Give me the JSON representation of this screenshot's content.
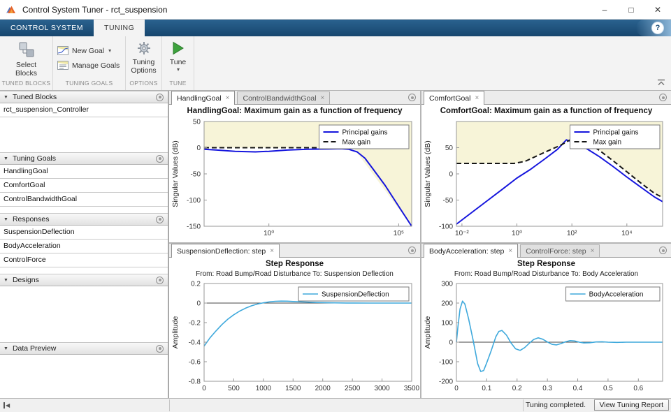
{
  "window": {
    "title": "Control System Tuner - rct_suspension"
  },
  "icons": {
    "help": "?",
    "minimize": "–",
    "maximize": "□",
    "close": "✕",
    "dropdown": "▾",
    "caret": "▼",
    "tab_close": "×",
    "collapse_left": "◀"
  },
  "toolstrip": {
    "tabs": [
      {
        "label": "CONTROL SYSTEM",
        "active": false
      },
      {
        "label": "TUNING",
        "active": true
      }
    ],
    "sections": [
      {
        "label": "TUNED BLOCKS",
        "buttons": [
          {
            "label": "Select Blocks"
          }
        ]
      },
      {
        "label": "TUNING GOALS",
        "buttons": [
          {
            "label": "New Goal",
            "dropdown": true
          },
          {
            "label": "Manage Goals"
          }
        ]
      },
      {
        "label": "OPTIONS",
        "buttons": [
          {
            "label": "Tuning Options"
          }
        ]
      },
      {
        "label": "TUNE",
        "buttons": [
          {
            "label": "Tune",
            "dropdown": true
          }
        ]
      }
    ]
  },
  "sidebar": {
    "panels": [
      {
        "title": "Tuned Blocks",
        "items": [
          "rct_suspension_Controller"
        ]
      },
      {
        "title": "Tuning Goals",
        "items": [
          "HandlingGoal",
          "ComfortGoal",
          "ControlBandwidthGoal"
        ]
      },
      {
        "title": "Responses",
        "items": [
          "SuspensionDeflection",
          "BodyAcceleration",
          "ControlForce"
        ]
      },
      {
        "title": "Designs",
        "items": []
      },
      {
        "title": "Data Preview",
        "items": []
      }
    ]
  },
  "docks": {
    "top_left": {
      "tabs": [
        {
          "label": "HandlingGoal",
          "active": true
        },
        {
          "label": "ControlBandwidthGoal",
          "active": false
        }
      ]
    },
    "top_right": {
      "tabs": [
        {
          "label": "ComfortGoal",
          "active": true
        }
      ]
    },
    "bottom_left": {
      "tabs": [
        {
          "label": "SuspensionDeflection: step",
          "active": true
        }
      ]
    },
    "bottom_right": {
      "tabs": [
        {
          "label": "BodyAcceleration: step",
          "active": true
        },
        {
          "label": "ControlForce: step",
          "active": false
        }
      ]
    }
  },
  "statusbar": {
    "message": "Tuning completed.",
    "button": "View Tuning Report"
  },
  "chart_data": [
    {
      "type": "line",
      "title": "HandlingGoal: Maximum gain as a function of frequency",
      "ylabel": "Singular Values (dB)",
      "xscale": "log",
      "xlim": [
        0.0032,
        316000
      ],
      "ylim": [
        -150,
        50
      ],
      "xticks": [
        {
          "v": 1,
          "label": "10⁰"
        },
        {
          "v": 100000,
          "label": "10⁵"
        }
      ],
      "yticks": [
        50,
        0,
        -50,
        -100,
        -150
      ],
      "legend_position": "top-right",
      "region": {
        "color": "#f7f4d8",
        "boundary": [
          [
            0.0032,
            0
          ],
          [
            1800,
            0
          ],
          [
            316000,
            -150
          ]
        ]
      },
      "series": [
        {
          "name": "Principal gains",
          "color": "#1515dd",
          "width": 2,
          "points": [
            [
              0.0032,
              -3
            ],
            [
              0.01,
              -4.5
            ],
            [
              0.05,
              -7
            ],
            [
              0.3,
              -8
            ],
            [
              1,
              -7
            ],
            [
              5,
              -4.5
            ],
            [
              30,
              -3
            ],
            [
              200,
              -2.5
            ],
            [
              600,
              -2
            ],
            [
              1200,
              -3
            ],
            [
              2500,
              -8
            ],
            [
              5000,
              -20
            ],
            [
              10000,
              -40
            ],
            [
              30000,
              -72
            ],
            [
              100000,
              -112
            ],
            [
              316000,
              -150
            ]
          ]
        },
        {
          "name": "Max gain",
          "color": "#141414",
          "width": 2,
          "dash": "7 4",
          "points": [
            [
              0.0032,
              0
            ],
            [
              1800,
              0
            ],
            [
              2600,
              -2
            ]
          ]
        }
      ]
    },
    {
      "type": "line",
      "title": "ComfortGoal: Maximum gain as a function of frequency",
      "ylabel": "Singular Values (dB)",
      "xscale": "log",
      "xlim": [
        0.0063,
        200000
      ],
      "ylim": [
        -100,
        100
      ],
      "xticks": [
        {
          "v": 0.01,
          "label": "10⁻²"
        },
        {
          "v": 1,
          "label": "10⁰"
        },
        {
          "v": 100,
          "label": "10²"
        },
        {
          "v": 10000,
          "label": "10⁴"
        }
      ],
      "yticks": [
        50,
        0,
        -50,
        -100
      ],
      "legend_position": "top-right",
      "region": {
        "color": "#f7f4d8",
        "series": 1
      },
      "series": [
        {
          "name": "Principal gains",
          "color": "#1515dd",
          "width": 2,
          "points": [
            [
              0.0063,
              -96
            ],
            [
              0.02,
              -76
            ],
            [
              0.08,
              -52
            ],
            [
              0.3,
              -29
            ],
            [
              1,
              -8
            ],
            [
              3,
              8
            ],
            [
              10,
              28
            ],
            [
              30,
              47
            ],
            [
              63,
              65
            ],
            [
              160,
              58
            ],
            [
              400,
              46
            ],
            [
              1000,
              33
            ],
            [
              3162,
              14
            ],
            [
              10000,
              -6
            ],
            [
              31623,
              -25
            ],
            [
              100000,
              -44
            ],
            [
              200000,
              -53
            ]
          ]
        },
        {
          "name": "Max gain",
          "color": "#141414",
          "width": 2,
          "dash": "7 4",
          "points": [
            [
              0.0063,
              20
            ],
            [
              0.8,
              20
            ],
            [
              2,
              24
            ],
            [
              10,
              41
            ],
            [
              40,
              55
            ],
            [
              100,
              67
            ],
            [
              200,
              66
            ],
            [
              400,
              58
            ],
            [
              1000,
              45
            ],
            [
              3162,
              25
            ],
            [
              10000,
              4
            ],
            [
              31623,
              -17
            ],
            [
              100000,
              -37
            ],
            [
              200000,
              -45
            ]
          ]
        }
      ]
    },
    {
      "type": "line",
      "title": "Step Response",
      "subtitle": "From: Road Bump/Road Disturbance  To: Suspension Deflection",
      "ylabel": "Amplitude",
      "xscale": "linear",
      "xlim": [
        0,
        3500
      ],
      "ylim": [
        -0.8,
        0.2
      ],
      "xticks": [
        0,
        500,
        1000,
        1500,
        2000,
        2500,
        3000,
        3500
      ],
      "yticks": [
        0.2,
        0,
        -0.2,
        -0.4,
        -0.6,
        -0.8
      ],
      "zeroline": true,
      "legend_position": "top-right",
      "series": [
        {
          "name": "SuspensionDeflection",
          "color": "#3fa9dc",
          "width": 1.6,
          "points": [
            [
              0,
              -0.44
            ],
            [
              100,
              -0.355
            ],
            [
              200,
              -0.285
            ],
            [
              300,
              -0.22
            ],
            [
              400,
              -0.165
            ],
            [
              500,
              -0.12
            ],
            [
              600,
              -0.082
            ],
            [
              700,
              -0.052
            ],
            [
              800,
              -0.028
            ],
            [
              900,
              -0.01
            ],
            [
              1000,
              0.003
            ],
            [
              1100,
              0.012
            ],
            [
              1200,
              0.018
            ],
            [
              1300,
              0.02
            ],
            [
              1400,
              0.019
            ],
            [
              1500,
              0.016
            ],
            [
              1700,
              0.011
            ],
            [
              1900,
              0.006
            ],
            [
              2100,
              0.003
            ],
            [
              2400,
              0.001
            ],
            [
              2800,
              0
            ],
            [
              3500,
              0
            ]
          ]
        }
      ]
    },
    {
      "type": "line",
      "title": "Step Response",
      "subtitle": "From: Road Bump/Road Disturbance  To: Body Acceleration",
      "ylabel": "Amplitude",
      "xscale": "linear",
      "xlim": [
        0,
        0.68
      ],
      "ylim": [
        -200,
        300
      ],
      "xticks": [
        0,
        0.1,
        0.2,
        0.3,
        0.4,
        0.5,
        0.6
      ],
      "yticks": [
        300,
        200,
        100,
        0,
        -100,
        -200
      ],
      "zeroline": true,
      "legend_position": "top-right",
      "series": [
        {
          "name": "BodyAcceleration",
          "color": "#3fa9dc",
          "width": 1.6,
          "points": [
            [
              0,
              0
            ],
            [
              0.005,
              80
            ],
            [
              0.012,
              170
            ],
            [
              0.02,
              210
            ],
            [
              0.028,
              195
            ],
            [
              0.04,
              120
            ],
            [
              0.055,
              10
            ],
            [
              0.07,
              -110
            ],
            [
              0.08,
              -150
            ],
            [
              0.09,
              -145
            ],
            [
              0.1,
              -105
            ],
            [
              0.115,
              -42
            ],
            [
              0.13,
              28
            ],
            [
              0.14,
              55
            ],
            [
              0.15,
              60
            ],
            [
              0.165,
              36
            ],
            [
              0.18,
              -4
            ],
            [
              0.195,
              -34
            ],
            [
              0.21,
              -42
            ],
            [
              0.225,
              -28
            ],
            [
              0.24,
              -6
            ],
            [
              0.255,
              14
            ],
            [
              0.27,
              22
            ],
            [
              0.285,
              15
            ],
            [
              0.3,
              1
            ],
            [
              0.315,
              -11
            ],
            [
              0.33,
              -14
            ],
            [
              0.345,
              -7
            ],
            [
              0.36,
              2
            ],
            [
              0.375,
              8
            ],
            [
              0.39,
              6
            ],
            [
              0.405,
              0
            ],
            [
              0.42,
              -4
            ],
            [
              0.44,
              -3
            ],
            [
              0.46,
              1
            ],
            [
              0.48,
              2
            ],
            [
              0.5,
              0
            ],
            [
              0.53,
              -1
            ],
            [
              0.56,
              0
            ],
            [
              0.6,
              0
            ],
            [
              0.68,
              0
            ]
          ]
        }
      ]
    }
  ]
}
